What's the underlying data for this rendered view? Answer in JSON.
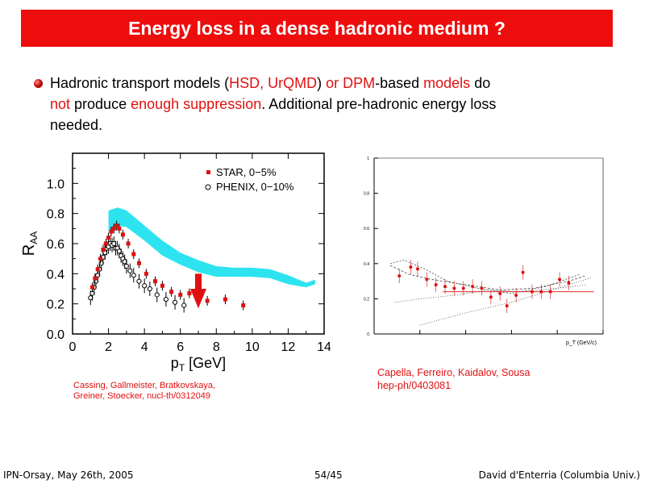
{
  "title": "Energy loss in a dense hadronic medium ?",
  "bullet": {
    "t1": "Hadronic transport models (",
    "t2": "HSD, UrQMD",
    "t3": ") ",
    "t4": "or DPM",
    "t5": "-based ",
    "t6": "models",
    "t7": " do",
    "t8": "not",
    "t9": " produce ",
    "t10": "enough suppression",
    "t11": ". Additional pre-hadronic energy loss",
    "t12": "needed."
  },
  "left_cite": {
    "line1": "Cassing, Gallmeister, Bratkovskaya,",
    "line2": "Greiner, Stoecker, nucl-th/0312049"
  },
  "right_cite": {
    "line1": "Capella, Ferreiro, Kaidalov, Sousa",
    "line2": "hep-ph/0403081"
  },
  "footer": {
    "left": "IPN-Orsay, May 26th, 2005",
    "center": "54/45",
    "right": "David d'Enterria (Columbia Univ.)"
  },
  "colors": {
    "accent": "#ee0d0d",
    "band": "#2de3ef",
    "star": "#e01010"
  },
  "chart_data": [
    {
      "type": "scatter",
      "xlabel": "p_T [GeV]",
      "ylabel": "R_AA",
      "xlim": [
        0,
        14
      ],
      "ylim": [
        0,
        1.2
      ],
      "xticks": [
        "0",
        "2",
        "4",
        "6",
        "8",
        "10",
        "12",
        "14"
      ],
      "yticks": [
        "0.0",
        "0.2",
        "0.4",
        "0.6",
        "0.8",
        "1.0"
      ],
      "legend": {
        "star": "STAR, 0−5%",
        "phenix": "PHENIX, 0−10%"
      },
      "series": [
        {
          "name": "STAR, 0−5%",
          "x": [
            1.1,
            1.25,
            1.4,
            1.55,
            1.7,
            1.85,
            2.0,
            2.15,
            2.3,
            2.45,
            2.6,
            2.8,
            3.1,
            3.4,
            3.7,
            4.1,
            4.6,
            5.0,
            5.5,
            6.0,
            6.5,
            7.0,
            7.5,
            8.5,
            9.5
          ],
          "y": [
            0.31,
            0.37,
            0.43,
            0.5,
            0.56,
            0.6,
            0.64,
            0.68,
            0.7,
            0.72,
            0.7,
            0.66,
            0.6,
            0.53,
            0.47,
            0.4,
            0.35,
            0.32,
            0.28,
            0.26,
            0.27,
            0.24,
            0.22,
            0.23,
            0.19
          ]
        },
        {
          "name": "PHENIX, 0−10%",
          "x": [
            1.0,
            1.1,
            1.2,
            1.3,
            1.4,
            1.5,
            1.6,
            1.7,
            1.8,
            1.9,
            2.0,
            2.1,
            2.2,
            2.3,
            2.4,
            2.5,
            2.6,
            2.7,
            2.8,
            2.9,
            3.0,
            3.2,
            3.4,
            3.7,
            4.0,
            4.3,
            4.7,
            5.2,
            5.7,
            6.2
          ],
          "y": [
            0.24,
            0.27,
            0.31,
            0.35,
            0.39,
            0.43,
            0.47,
            0.51,
            0.54,
            0.57,
            0.58,
            0.6,
            0.59,
            0.6,
            0.57,
            0.57,
            0.55,
            0.52,
            0.5,
            0.48,
            0.45,
            0.42,
            0.39,
            0.35,
            0.32,
            0.3,
            0.26,
            0.23,
            0.21,
            0.19
          ]
        }
      ],
      "band": {
        "x": [
          2.0,
          2.5,
          3.0,
          4.0,
          5.0,
          6.0,
          7.0,
          8.0,
          9.0,
          10.0,
          11.0,
          12.0,
          13.0,
          13.5
        ],
        "upper": [
          0.82,
          0.84,
          0.82,
          0.72,
          0.62,
          0.54,
          0.49,
          0.45,
          0.44,
          0.44,
          0.43,
          0.39,
          0.34,
          0.36
        ],
        "lower": [
          0.68,
          0.72,
          0.71,
          0.62,
          0.52,
          0.46,
          0.41,
          0.38,
          0.38,
          0.38,
          0.37,
          0.33,
          0.31,
          0.33
        ]
      },
      "arrow_x": 7.0
    },
    {
      "type": "scatter",
      "xlabel": "p_T (GeV/c)",
      "xlim": [
        0,
        10
      ],
      "ylim": [
        0,
        1
      ],
      "yticks": [
        "0",
        "0.2",
        "0.4",
        "0.6",
        "0.8",
        "1"
      ],
      "x": [
        1.1,
        1.6,
        1.9,
        2.3,
        2.7,
        3.1,
        3.5,
        3.9,
        4.3,
        4.7,
        5.1,
        5.5,
        5.8,
        6.2,
        6.5,
        6.9,
        7.3,
        7.7,
        8.1,
        8.5
      ],
      "y": [
        0.33,
        0.38,
        0.37,
        0.31,
        0.28,
        0.27,
        0.26,
        0.26,
        0.27,
        0.26,
        0.21,
        0.23,
        0.16,
        0.22,
        0.35,
        0.24,
        0.24,
        0.24,
        0.31,
        0.29
      ]
    }
  ]
}
